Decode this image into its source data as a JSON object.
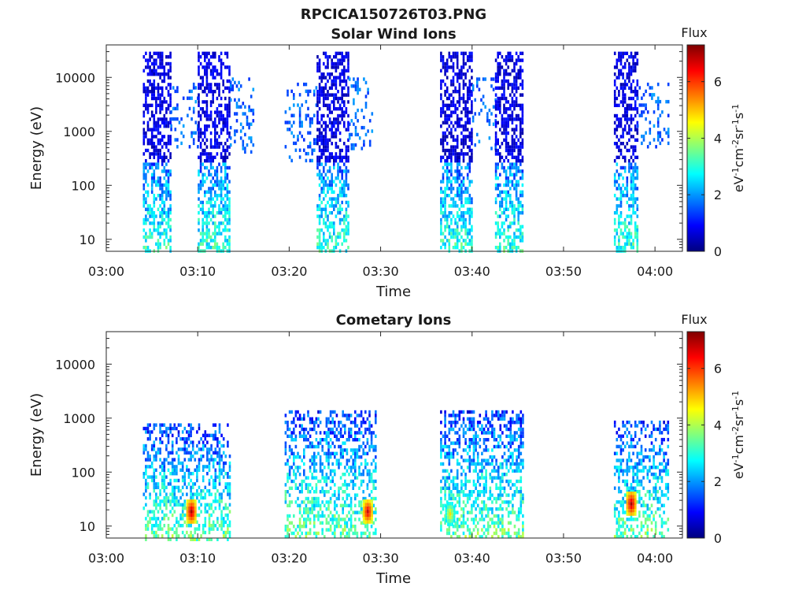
{
  "figure": {
    "title": "RPCICA150726T03.PNG",
    "colormap": [
      "#00007f",
      "#0000ff",
      "#007fff",
      "#00ffff",
      "#7fff7f",
      "#ffff00",
      "#ff7f00",
      "#ff0000",
      "#7f0000"
    ]
  },
  "chart_data": [
    {
      "type": "heatmap",
      "title": "Solar Wind Ions",
      "xlabel": "Time",
      "ylabel": "Energy (eV)",
      "x_ticks": [
        "03:00",
        "03:10",
        "03:20",
        "03:30",
        "03:40",
        "03:50",
        "04:00"
      ],
      "x_range_min": [
        0,
        63
      ],
      "y_scale": "log",
      "y_ticks": [
        10,
        100,
        1000,
        10000
      ],
      "y_tick_labels": [
        "10",
        "100",
        "1000",
        "10000"
      ],
      "y_range": [
        6,
        40000
      ],
      "colorbar": {
        "label": "Flux",
        "units": "eV-1cm-2sr-1s-1",
        "ticks": [
          0,
          2,
          4,
          6
        ],
        "range": [
          0,
          7.3
        ]
      },
      "data_blocks": [
        {
          "start_min": 4.0,
          "end_min": 7.0,
          "emin": 6,
          "emax": 30000
        },
        {
          "start_min": 7.0,
          "end_min": 10.0,
          "emin": 500,
          "emax": 8000
        },
        {
          "start_min": 10.0,
          "end_min": 13.5,
          "emin": 6,
          "emax": 30000
        },
        {
          "start_min": 13.5,
          "end_min": 16.0,
          "emin": 400,
          "emax": 10000
        },
        {
          "start_min": 19.5,
          "end_min": 23.0,
          "emin": 300,
          "emax": 8000
        },
        {
          "start_min": 23.0,
          "end_min": 26.5,
          "emin": 6,
          "emax": 30000
        },
        {
          "start_min": 26.5,
          "end_min": 29.0,
          "emin": 500,
          "emax": 10000
        },
        {
          "start_min": 36.5,
          "end_min": 40.0,
          "emin": 6,
          "emax": 30000
        },
        {
          "start_min": 40.0,
          "end_min": 42.5,
          "emin": 500,
          "emax": 10000
        },
        {
          "start_min": 42.5,
          "end_min": 45.5,
          "emin": 6,
          "emax": 30000
        },
        {
          "start_min": 55.5,
          "end_min": 58.0,
          "emin": 6,
          "emax": 30000
        },
        {
          "start_min": 58.0,
          "end_min": 61.5,
          "emin": 500,
          "emax": 8000
        }
      ]
    },
    {
      "type": "heatmap",
      "title": "Cometary Ions",
      "xlabel": "Time",
      "ylabel": "Energy (eV)",
      "x_ticks": [
        "03:00",
        "03:10",
        "03:20",
        "03:30",
        "03:40",
        "03:50",
        "04:00"
      ],
      "x_range_min": [
        0,
        63
      ],
      "y_scale": "log",
      "y_ticks": [
        10,
        100,
        1000,
        10000
      ],
      "y_tick_labels": [
        "10",
        "100",
        "1000",
        "10000"
      ],
      "y_range": [
        6,
        40000
      ],
      "colorbar": {
        "label": "Flux",
        "units": "eV-1cm-2sr-1s-1",
        "ticks": [
          0,
          2,
          4,
          6
        ],
        "range": [
          0,
          7.3
        ]
      },
      "data_blocks": [
        {
          "start_min": 4.0,
          "end_min": 13.5,
          "emin": 6,
          "emax": 800
        },
        {
          "start_min": 19.5,
          "end_min": 29.5,
          "emin": 6,
          "emax": 1400
        },
        {
          "start_min": 36.5,
          "end_min": 45.5,
          "emin": 6,
          "emax": 1400
        },
        {
          "start_min": 55.5,
          "end_min": 61.5,
          "emin": 6,
          "emax": 900
        }
      ],
      "peaks": [
        {
          "time_min": 9.2,
          "energy": 20,
          "flux": 7.0
        },
        {
          "time_min": 28.5,
          "energy": 20,
          "flux": 6.8
        },
        {
          "time_min": 37.5,
          "energy": 18,
          "flux": 4.8
        },
        {
          "time_min": 57.3,
          "energy": 28,
          "flux": 7.0
        }
      ]
    }
  ]
}
